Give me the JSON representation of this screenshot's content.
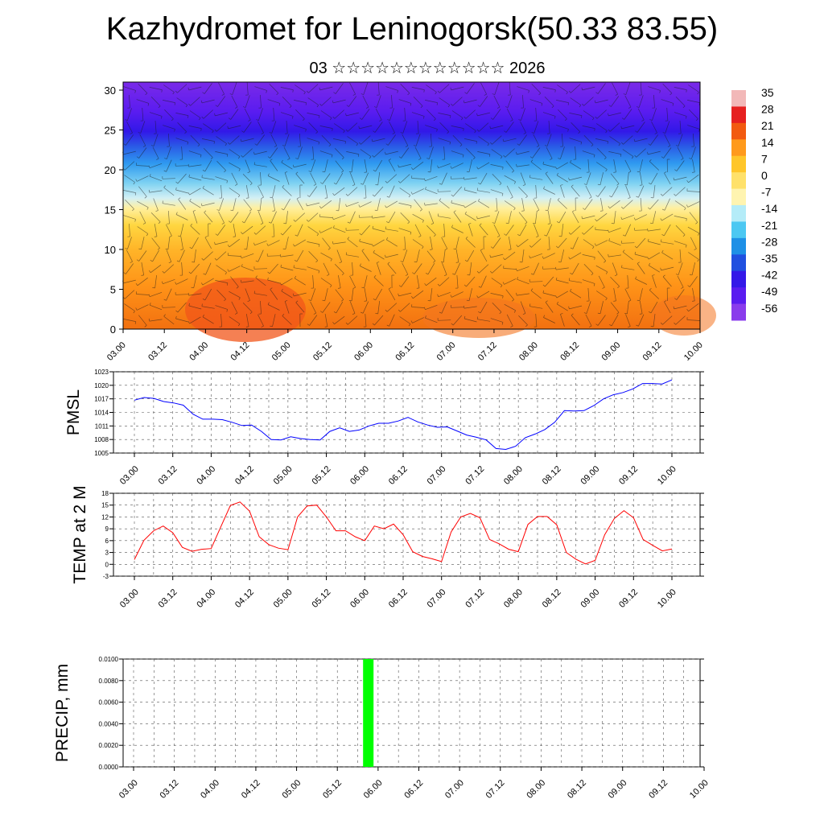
{
  "title": "Kazhydromet for Leninogorsk(50.33 83.55)",
  "subtitle": "03 ☆☆☆☆☆☆☆☆☆☆☆☆ 2026",
  "time_ticks": [
    "03.00",
    "03.12",
    "04.00",
    "04.12",
    "05.00",
    "05.12",
    "06.00",
    "06.12",
    "07.00",
    "07.12",
    "08.00",
    "08.12",
    "09.00",
    "09.12",
    "10.00"
  ],
  "colorbar": {
    "labels": [
      "35",
      "28",
      "21",
      "14",
      "7",
      "0",
      "-7",
      "-14",
      "-21",
      "-28",
      "-35",
      "-42",
      "-49",
      "-56"
    ],
    "colors": [
      "#f2b8b8",
      "#e62020",
      "#f25a10",
      "#ff9a1c",
      "#ffc62a",
      "#ffe16a",
      "#fff4b0",
      "#b4ecf8",
      "#4cc8f2",
      "#1e90e6",
      "#2050e0",
      "#3418e8",
      "#5a1cf0",
      "#8a3cec"
    ]
  },
  "chart_data": [
    {
      "type": "heatmap",
      "title": "",
      "xlabel": "",
      "ylabel": "",
      "x_ticks": [
        "03.00",
        "03.12",
        "04.00",
        "04.12",
        "05.00",
        "05.12",
        "06.00",
        "06.12",
        "07.00",
        "07.12",
        "08.00",
        "08.12",
        "09.00",
        "09.12",
        "10.00"
      ],
      "y_ticks": [
        0,
        5,
        10,
        15,
        20,
        25,
        30
      ],
      "ylim": [
        0,
        30
      ],
      "colorbar_range": [
        -56,
        35
      ],
      "overlay": "wind barbs"
    },
    {
      "type": "line",
      "ylabel": "PMSL",
      "ylim": [
        1005,
        1023
      ],
      "y_ticks": [
        1005,
        1008,
        1011,
        1014,
        1017,
        1020,
        1023
      ],
      "x_ticks": [
        "03.00",
        "03.12",
        "04.00",
        "04.12",
        "05.00",
        "05.12",
        "06.00",
        "06.12",
        "07.00",
        "07.12",
        "08.00",
        "08.12",
        "09.00",
        "09.12",
        "10.00"
      ],
      "color": "#0000ff",
      "values": [
        1016.7,
        1017.3,
        1017.1,
        1016.4,
        1016.1,
        1015.6,
        1013.6,
        1012.5,
        1012.5,
        1012.4,
        1011.8,
        1011.1,
        1011.2,
        1009.8,
        1008.0,
        1007.9,
        1008.6,
        1008.2,
        1008.0,
        1007.9,
        1009.8,
        1010.6,
        1009.8,
        1010.1,
        1011.0,
        1011.6,
        1011.6,
        1012.1,
        1012.9,
        1011.9,
        1011.2,
        1010.7,
        1010.8,
        1009.9,
        1009.0,
        1008.5,
        1007.9,
        1006.0,
        1005.8,
        1006.5,
        1008.4,
        1009.2,
        1010.2,
        1011.8,
        1014.4,
        1014.3,
        1014.4,
        1015.5,
        1017.0,
        1017.9,
        1018.4,
        1019.2,
        1020.4,
        1020.4,
        1020.3,
        1021.2
      ]
    },
    {
      "type": "line",
      "ylabel": "TEMP at 2 M",
      "ylim": [
        -3,
        18
      ],
      "y_ticks": [
        -3,
        0,
        3,
        6,
        9,
        12,
        15,
        18
      ],
      "x_ticks": [
        "03.00",
        "03.12",
        "04.00",
        "04.12",
        "05.00",
        "05.12",
        "06.00",
        "06.12",
        "07.00",
        "07.12",
        "08.00",
        "08.12",
        "09.00",
        "09.12",
        "10.00"
      ],
      "color": "#ff0000",
      "values": [
        1.2,
        6.1,
        8.5,
        9.7,
        8.0,
        4.3,
        3.3,
        3.8,
        4.0,
        9.5,
        14.9,
        15.8,
        13.5,
        7.0,
        5.0,
        4.1,
        3.7,
        12.0,
        14.8,
        15.0,
        12.0,
        8.5,
        8.5,
        7.0,
        6.0,
        9.7,
        9.0,
        10.2,
        7.5,
        3.2,
        2.0,
        1.4,
        0.7,
        8.2,
        12.0,
        12.9,
        11.8,
        6.3,
        5.2,
        3.8,
        3.2,
        10.1,
        12.1,
        12.1,
        10.0,
        3.0,
        1.3,
        0.1,
        1.0,
        7.5,
        11.6,
        13.6,
        11.8,
        6.3,
        4.8,
        3.4,
        3.9
      ]
    },
    {
      "type": "bar",
      "ylabel": "PRECIP, mm",
      "ylim": [
        0,
        0.01
      ],
      "y_ticks": [
        "0.0000",
        "0.0020",
        "0.0040",
        "0.0060",
        "0.0080",
        "0.0100"
      ],
      "x_ticks": [
        "03.00",
        "03.12",
        "04.00",
        "04.12",
        "05.00",
        "05.12",
        "06.00",
        "06.12",
        "07.00",
        "07.12",
        "08.00",
        "08.12",
        "09.00",
        "09.12",
        "10.00"
      ],
      "color": "#00ff00",
      "bars": [
        {
          "x": "05.21",
          "value": 0.01
        }
      ]
    }
  ]
}
